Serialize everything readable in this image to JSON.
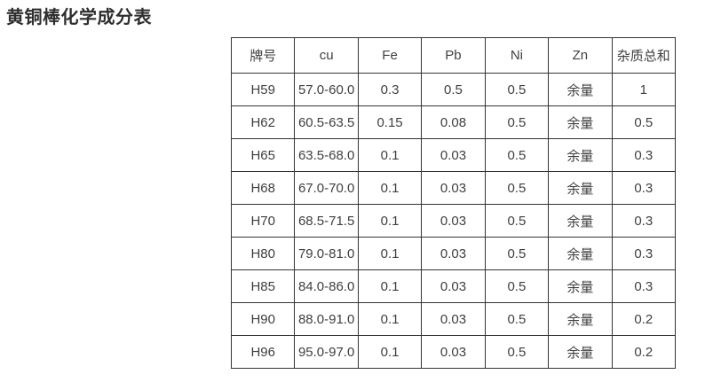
{
  "title": "黄铜棒化学成分表",
  "table": {
    "columns": [
      "牌号",
      "cu",
      "Fe",
      "Pb",
      "Ni",
      "Zn",
      "杂质总和"
    ],
    "rows": [
      [
        "H59",
        "57.0-60.0",
        "0.3",
        "0.5",
        "0.5",
        "余量",
        "1"
      ],
      [
        "H62",
        "60.5-63.5",
        "0.15",
        "0.08",
        "0.5",
        "余量",
        "0.5"
      ],
      [
        "H65",
        "63.5-68.0",
        "0.1",
        "0.03",
        "0.5",
        "余量",
        "0.3"
      ],
      [
        "H68",
        "67.0-70.0",
        "0.1",
        "0.03",
        "0.5",
        "余量",
        "0.3"
      ],
      [
        "H70",
        "68.5-71.5",
        "0.1",
        "0.03",
        "0.5",
        "余量",
        "0.3"
      ],
      [
        "H80",
        "79.0-81.0",
        "0.1",
        "0.03",
        "0.5",
        "余量",
        "0.3"
      ],
      [
        "H85",
        "84.0-86.0",
        "0.1",
        "0.03",
        "0.5",
        "余量",
        "0.3"
      ],
      [
        "H90",
        "88.0-91.0",
        "0.1",
        "0.03",
        "0.5",
        "余量",
        "0.2"
      ],
      [
        "H96",
        "95.0-97.0",
        "0.1",
        "0.03",
        "0.5",
        "余量",
        "0.2"
      ]
    ]
  },
  "colors": {
    "background": "#ffffff",
    "title_text": "#2e2e2e",
    "table_text": "#404040",
    "table_border": "#333333"
  }
}
